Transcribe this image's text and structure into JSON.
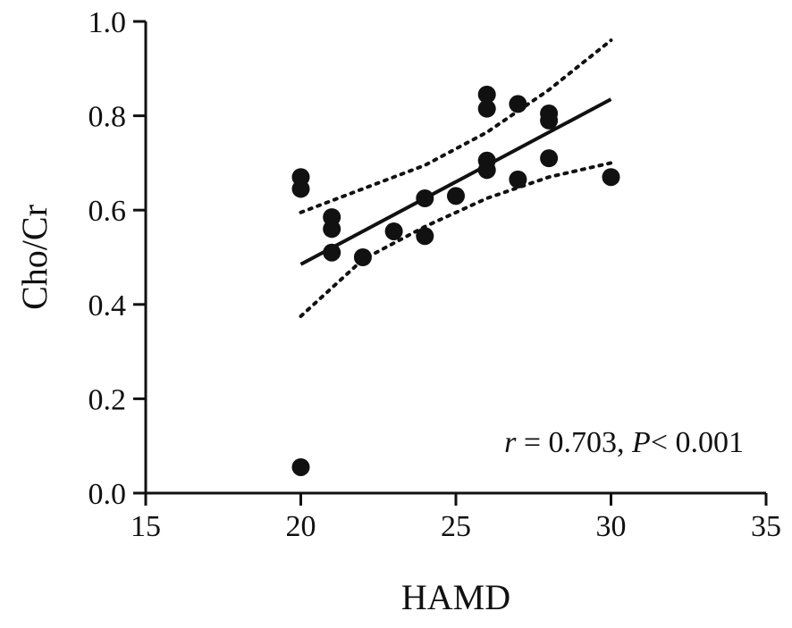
{
  "chart_data": {
    "type": "scatter",
    "title": "",
    "xlabel": "HAMD",
    "ylabel": "Cho/Cr",
    "xlim": [
      15,
      35
    ],
    "ylim": [
      0.0,
      1.0
    ],
    "xticks": [
      15,
      20,
      25,
      30,
      35
    ],
    "yticks": [
      0.0,
      0.2,
      0.4,
      0.6,
      0.8,
      1.0
    ],
    "xtick_labels": [
      "15",
      "20",
      "25",
      "30",
      "35"
    ],
    "ytick_labels": [
      "0.0",
      "0.2",
      "0.4",
      "0.6",
      "0.8",
      "1.0"
    ],
    "grid": false,
    "points": [
      {
        "x": 20,
        "y": 0.67
      },
      {
        "x": 20,
        "y": 0.645
      },
      {
        "x": 20,
        "y": 0.055
      },
      {
        "x": 21,
        "y": 0.585
      },
      {
        "x": 21,
        "y": 0.56
      },
      {
        "x": 21,
        "y": 0.51
      },
      {
        "x": 22,
        "y": 0.5
      },
      {
        "x": 23,
        "y": 0.555
      },
      {
        "x": 24,
        "y": 0.625
      },
      {
        "x": 24,
        "y": 0.545
      },
      {
        "x": 25,
        "y": 0.63
      },
      {
        "x": 26,
        "y": 0.845
      },
      {
        "x": 26,
        "y": 0.815
      },
      {
        "x": 26,
        "y": 0.705
      },
      {
        "x": 26,
        "y": 0.685
      },
      {
        "x": 27,
        "y": 0.825
      },
      {
        "x": 27,
        "y": 0.665
      },
      {
        "x": 28,
        "y": 0.805
      },
      {
        "x": 28,
        "y": 0.79
      },
      {
        "x": 28,
        "y": 0.71
      },
      {
        "x": 30,
        "y": 0.67
      }
    ],
    "fit_line": [
      [
        20,
        0.485
      ],
      [
        30,
        0.835
      ]
    ],
    "ci_upper": [
      [
        20,
        0.595
      ],
      [
        22,
        0.645
      ],
      [
        24,
        0.695
      ],
      [
        26,
        0.765
      ],
      [
        28,
        0.855
      ],
      [
        30,
        0.96
      ]
    ],
    "ci_lower": [
      [
        20,
        0.375
      ],
      [
        22,
        0.495
      ],
      [
        24,
        0.565
      ],
      [
        26,
        0.625
      ],
      [
        28,
        0.67
      ],
      [
        30,
        0.7
      ]
    ],
    "annotation": {
      "r_symbol": "r",
      "r_text": " = 0.703, ",
      "p_symbol": "P",
      "p_text": "< 0.001"
    }
  }
}
